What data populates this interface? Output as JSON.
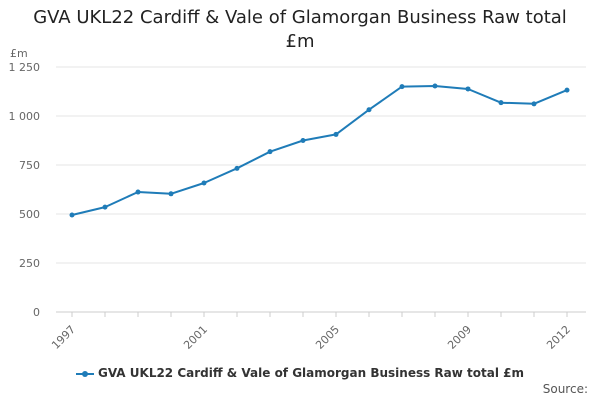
{
  "chart_data": {
    "type": "line",
    "title": "GVA UKL22 Cardiff & Vale of Glamorgan Business Raw total £m",
    "ylabel": "£m",
    "xlabel": "",
    "ylim": [
      0,
      1250
    ],
    "xlim": [
      1997,
      2012
    ],
    "y_ticks": [
      {
        "value": 0,
        "label": "0"
      },
      {
        "value": 250,
        "label": "250"
      },
      {
        "value": 500,
        "label": "500"
      },
      {
        "value": 750,
        "label": "750"
      },
      {
        "value": 1000,
        "label": "1 000"
      },
      {
        "value": 1250,
        "label": "1 250"
      }
    ],
    "x_tick_labels": [
      {
        "value": 1997,
        "label": "1997"
      },
      {
        "value": 2001,
        "label": "2001"
      },
      {
        "value": 2005,
        "label": "2005"
      },
      {
        "value": 2009,
        "label": "2009"
      },
      {
        "value": 2012,
        "label": "2012"
      }
    ],
    "series": [
      {
        "name": "GVA UKL22 Cardiff & Vale of Glamorgan Business Raw total £m",
        "color": "#1f7cb8",
        "x": [
          1997,
          1998,
          1999,
          2000,
          2001,
          2002,
          2003,
          2004,
          2005,
          2006,
          2007,
          2008,
          2009,
          2010,
          2011,
          2012
        ],
        "values": [
          495,
          535,
          612,
          603,
          658,
          733,
          818,
          875,
          906,
          1032,
          1150,
          1153,
          1138,
          1068,
          1062,
          1132
        ]
      }
    ],
    "legend_position": "bottom",
    "source_label": "Source:"
  }
}
